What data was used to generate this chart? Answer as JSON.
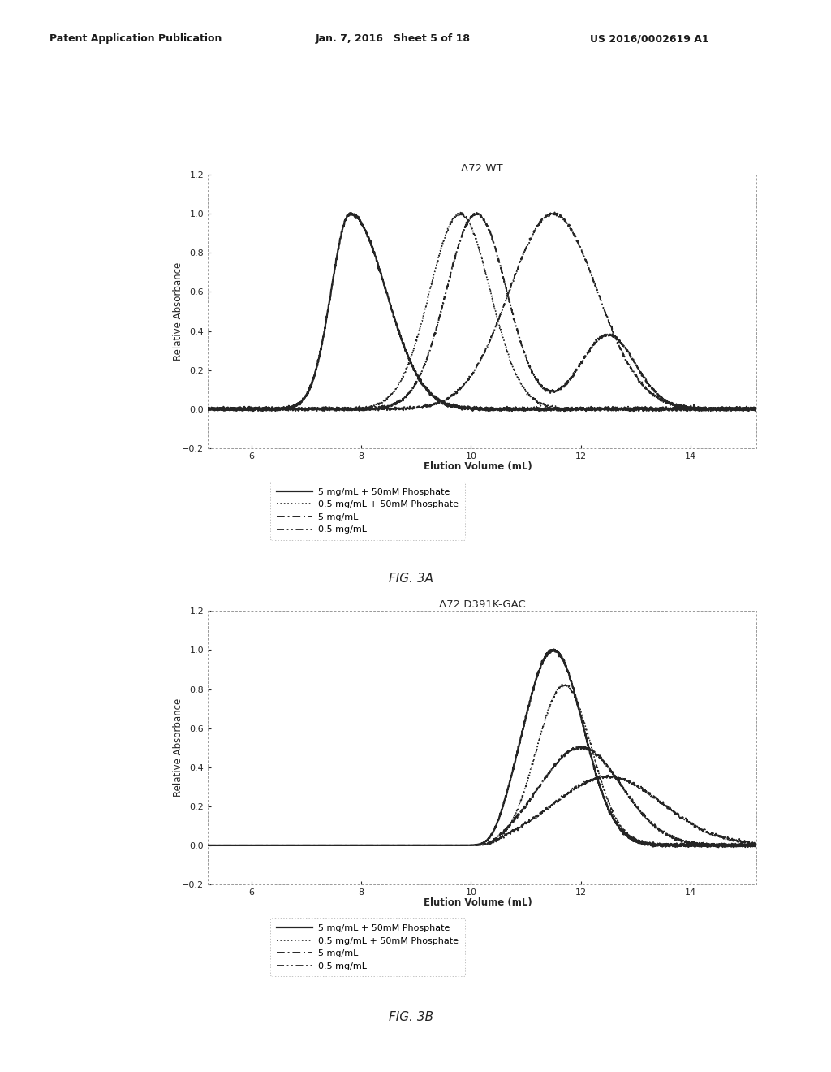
{
  "fig3a_title": "Δ72 WT",
  "fig3b_title": "Δ72 D391K-GAC",
  "xlabel": "Elution Volume (mL)",
  "ylabel": "Relative Absorbance",
  "xlim": [
    5.2,
    15.2
  ],
  "ylim": [
    -0.2,
    1.2
  ],
  "xticks": [
    6,
    8,
    10,
    12,
    14
  ],
  "yticks_3a": [
    -0.2,
    0.0,
    0.2,
    0.4,
    0.6,
    0.8,
    1.0,
    1.2
  ],
  "yticks_3b": [
    -0.2,
    0.0,
    0.2,
    0.4,
    0.6,
    0.8,
    1.0,
    1.2
  ],
  "fig3a_caption": "FIG. 3A",
  "fig3b_caption": "FIG. 3B",
  "legend_entries": [
    "5 mg/mL + 50mM Phosphate",
    "0.5 mg/mL + 50mM Phosphate",
    "5 mg/mL",
    "0.5 mg/mL"
  ],
  "background_color": "#ffffff",
  "header_left": "Patent Application Publication",
  "header_mid": "Jan. 7, 2016   Sheet 5 of 18",
  "header_right": "US 2016/0002619 A1"
}
